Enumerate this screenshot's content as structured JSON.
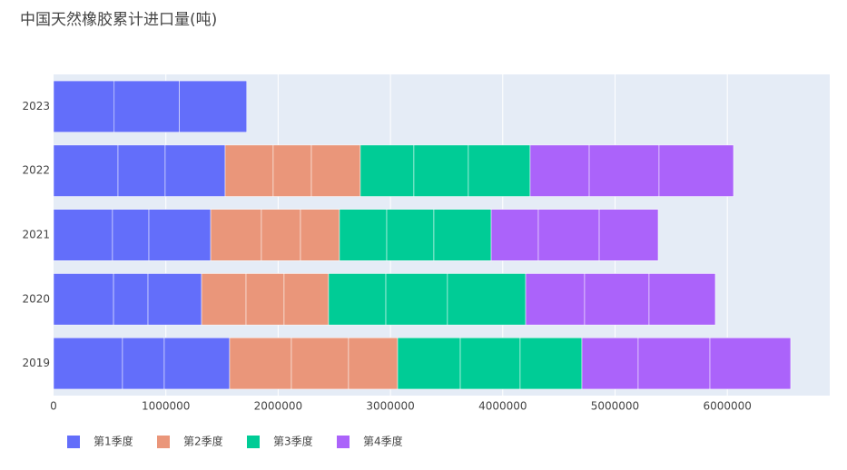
{
  "chart_data": {
    "type": "stacked-bar-horizontal",
    "title": "中国天然橡胶累计进口量(吨)",
    "categories": [
      "2019",
      "2020",
      "2021",
      "2022",
      "2023"
    ],
    "series": [
      {
        "name": "第1季度",
        "color": "#636efa",
        "values": [
          [
            614000,
            372000,
            582000
          ],
          [
            534000,
            307000,
            477000
          ],
          [
            525000,
            324000,
            550000
          ],
          [
            574000,
            420000,
            534000
          ],
          [
            540000,
            580000,
            600000
          ]
        ]
      },
      {
        "name": "第2季度",
        "color": "#ea967a",
        "values": [
          [
            550000,
            509000,
            437000
          ],
          [
            396000,
            339000,
            396000
          ],
          [
            452000,
            348000,
            347000
          ],
          [
            428000,
            340000,
            436000
          ],
          [
            null,
            null,
            null
          ]
        ]
      },
      {
        "name": "第3季度",
        "color": "#00cc96",
        "values": [
          [
            558000,
            533000,
            550000
          ],
          [
            510000,
            549000,
            696000
          ],
          [
            421000,
            420000,
            510000
          ],
          [
            477000,
            485000,
            550000
          ],
          [
            null,
            null,
            null
          ]
        ]
      },
      {
        "name": "第4季度",
        "color": "#ab63fa",
        "values": [
          [
            501000,
            639000,
            719000
          ],
          [
            525000,
            574000,
            590000
          ],
          [
            420000,
            542000,
            525000
          ],
          [
            526000,
            622000,
            663000
          ],
          [
            null,
            null,
            null
          ]
        ]
      }
    ],
    "xlim": [
      0,
      6912000
    ],
    "xticks": [
      0,
      1000000,
      2000000,
      3000000,
      4000000,
      5000000,
      6000000
    ],
    "grid": true,
    "legend": "bottom"
  }
}
